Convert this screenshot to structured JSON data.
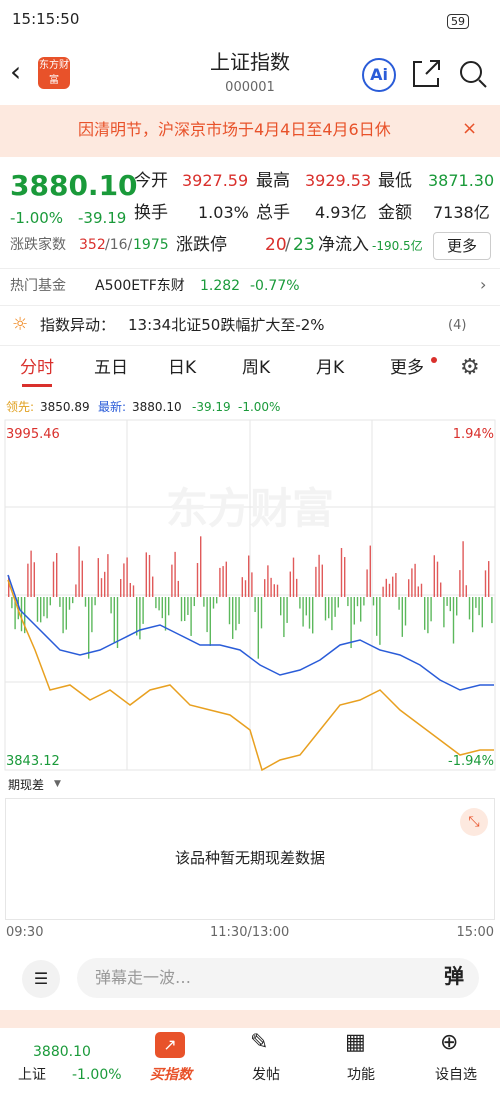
{
  "status_bar": {
    "time": "15:15:50",
    "battery": "59"
  },
  "header": {
    "title": "上证指数",
    "code": "000001",
    "ai": "Ai",
    "logo": "东方财富"
  },
  "notice": {
    "text": "因清明节，沪深京市场于4月4日至4月6日休",
    "close": "×"
  },
  "quote": {
    "price": "3880.10",
    "change_pct": "-1.00%",
    "change": "-39.19",
    "fields": [
      [
        "今开",
        "3927.59"
      ],
      [
        "最高",
        "3929.53"
      ],
      [
        "最低",
        "3871.30"
      ],
      [
        "换手",
        "1.03%"
      ],
      [
        "总手",
        "4.93亿"
      ],
      [
        "金额",
        "7138亿"
      ]
    ]
  },
  "breadth": {
    "label": "涨跌家数",
    "up": "352",
    "flat": "/16/",
    "down": "1975",
    "limit_label": "涨跌停",
    "limit_up": "20",
    "limit_sep": "/",
    "limit_down": "23",
    "inflow_label": "净流入",
    "inflow": "-190.5亿",
    "more": "更多"
  },
  "hot_fund": {
    "label": "热门基金",
    "name": "A500ETF东财",
    "price": "1.282",
    "change": "-0.77%"
  },
  "alert": {
    "label": "指数异动：",
    "text": "13:34北证50跌幅扩大至-2%",
    "count": "(4)"
  },
  "tabs": [
    "分时",
    "五日",
    "日K",
    "周K",
    "月K",
    "更多"
  ],
  "legend": {
    "lead_label": "领先:",
    "lead": "3850.89",
    "last_label": "最新:",
    "last": "3880.10",
    "change": "-39.19",
    "change_pct": "-1.00%"
  },
  "chart": {
    "max": "3995.46",
    "max_pct": "1.94%",
    "min": "3843.12",
    "min_pct": "-1.94%",
    "watermark": "东方财富"
  },
  "spread": {
    "label": "期现差",
    "empty": "该品种暂无期现差数据"
  },
  "time_axis": [
    "09:30",
    "11:30/13:00",
    "15:00"
  ],
  "danmu": {
    "placeholder": "弹幕走一波…",
    "button": "弹"
  },
  "bottom_nav": {
    "price": "3880.10",
    "name": "上证",
    "change": "-1.00%",
    "items": [
      "买指数",
      "发帖",
      "功能",
      "设自选"
    ]
  }
}
